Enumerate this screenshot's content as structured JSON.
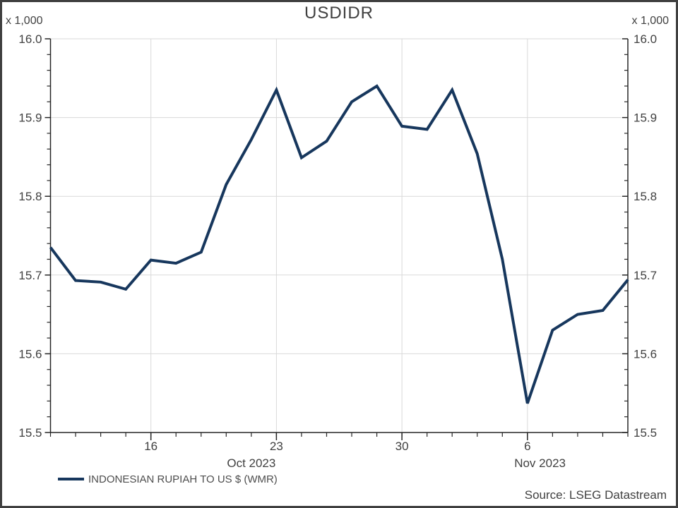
{
  "chart": {
    "title": "USDIDR",
    "axis_multiplier_label": "x 1,000",
    "legend_label": "INDONESIAN RUPIAH TO US $ (WMR)",
    "source": "Source: LSEG Datastream"
  },
  "chart_data": {
    "type": "line",
    "title": "USDIDR",
    "unit_label": "x 1,000",
    "ylim": [
      15.5,
      16.0
    ],
    "y_ticks": [
      {
        "value": 16.0,
        "label": "16.0"
      },
      {
        "value": 15.9,
        "label": "15.9"
      },
      {
        "value": 15.8,
        "label": "15.8"
      },
      {
        "value": 15.7,
        "label": "15.7"
      },
      {
        "value": 15.6,
        "label": "15.6"
      },
      {
        "value": 15.5,
        "label": "15.5"
      }
    ],
    "y_minor_step": 0.02,
    "x": [
      "2023-10-10",
      "2023-10-11",
      "2023-10-12",
      "2023-10-13",
      "2023-10-16",
      "2023-10-17",
      "2023-10-18",
      "2023-10-19",
      "2023-10-20",
      "2023-10-23",
      "2023-10-24",
      "2023-10-25",
      "2023-10-26",
      "2023-10-27",
      "2023-10-30",
      "2023-10-31",
      "2023-11-01",
      "2023-11-02",
      "2023-11-03",
      "2023-11-06",
      "2023-11-07",
      "2023-11-08",
      "2023-11-09",
      "2023-11-10"
    ],
    "x_major_ticks": [
      {
        "index": 4,
        "label": "16"
      },
      {
        "index": 9,
        "label": "23"
      },
      {
        "index": 14,
        "label": "30"
      },
      {
        "index": 19,
        "label": "6"
      }
    ],
    "x_month_labels": [
      {
        "index": 8,
        "label": "Oct 2023"
      },
      {
        "index": 19.5,
        "label": "Nov 2023"
      }
    ],
    "series": [
      {
        "name": "INDONESIAN RUPIAH TO US $ (WMR)",
        "color": "#17375d",
        "values": [
          15.735,
          15.693,
          15.691,
          15.682,
          15.719,
          15.715,
          15.729,
          15.815,
          15.872,
          15.935,
          15.849,
          15.87,
          15.92,
          15.94,
          15.889,
          15.885,
          15.935,
          15.854,
          15.72,
          15.537,
          15.63,
          15.65,
          15.655,
          15.694
        ]
      }
    ],
    "grid": true,
    "legend_position": "bottom-left",
    "source": "Source: LSEG Datastream",
    "colors": {
      "line": "#17375d",
      "grid": "#d9d9d9",
      "axis": "#262626",
      "text": "#404040",
      "legend_text": "#4d4d4d"
    }
  }
}
